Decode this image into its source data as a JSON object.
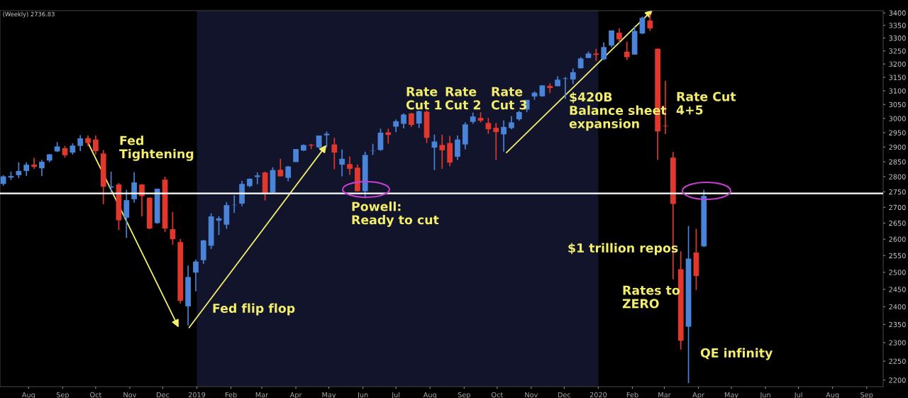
{
  "chart_data": {
    "type": "candlestick",
    "log": true,
    "x": [
      "2018-07-09",
      "2018-07-16",
      "2018-07-23",
      "2018-07-30",
      "2018-08-06",
      "2018-08-13",
      "2018-08-20",
      "2018-08-27",
      "2018-09-03",
      "2018-09-10",
      "2018-09-17",
      "2018-09-24",
      "2018-10-01",
      "2018-10-08",
      "2018-10-15",
      "2018-10-22",
      "2018-10-29",
      "2018-11-05",
      "2018-11-12",
      "2018-11-19",
      "2018-11-26",
      "2018-12-03",
      "2018-12-10",
      "2018-12-17",
      "2018-12-24",
      "2018-12-31",
      "2019-01-07",
      "2019-01-14",
      "2019-01-21",
      "2019-01-28",
      "2019-02-04",
      "2019-02-11",
      "2019-02-18",
      "2019-02-25",
      "2019-03-04",
      "2019-03-11",
      "2019-03-18",
      "2019-03-25",
      "2019-04-01",
      "2019-04-08",
      "2019-04-15",
      "2019-04-22",
      "2019-04-29",
      "2019-05-06",
      "2019-05-13",
      "2019-05-20",
      "2019-05-27",
      "2019-06-03",
      "2019-06-10",
      "2019-06-17",
      "2019-06-24",
      "2019-07-01",
      "2019-07-08",
      "2019-07-15",
      "2019-07-22",
      "2019-07-29",
      "2019-08-05",
      "2019-08-12",
      "2019-08-19",
      "2019-08-26",
      "2019-09-02",
      "2019-09-09",
      "2019-09-16",
      "2019-09-23",
      "2019-09-30",
      "2019-10-07",
      "2019-10-14",
      "2019-10-21",
      "2019-10-28",
      "2019-11-04",
      "2019-11-11",
      "2019-11-18",
      "2019-11-25",
      "2019-12-02",
      "2019-12-09",
      "2019-12-16",
      "2019-12-23",
      "2019-12-30",
      "2020-01-06",
      "2020-01-13",
      "2020-01-20",
      "2020-01-27",
      "2020-02-03",
      "2020-02-10",
      "2020-02-17",
      "2020-02-24",
      "2020-03-02",
      "2020-03-09",
      "2020-03-16",
      "2020-03-23",
      "2020-03-30",
      "2020-04-06"
    ],
    "ohlc": [
      [
        2776,
        2805,
        2770,
        2801
      ],
      [
        2797,
        2817,
        2789,
        2802
      ],
      [
        2805,
        2848,
        2795,
        2819
      ],
      [
        2819,
        2848,
        2802,
        2840
      ],
      [
        2840,
        2863,
        2826,
        2833
      ],
      [
        2828,
        2856,
        2802,
        2850
      ],
      [
        2854,
        2876,
        2848,
        2875
      ],
      [
        2885,
        2917,
        2883,
        2902
      ],
      [
        2896,
        2904,
        2864,
        2872
      ],
      [
        2881,
        2913,
        2874,
        2905
      ],
      [
        2904,
        2941,
        2886,
        2930
      ],
      [
        2931,
        2940,
        2903,
        2914
      ],
      [
        2926,
        2940,
        2874,
        2886
      ],
      [
        2878,
        2890,
        2710,
        2767
      ],
      [
        2764,
        2817,
        2749,
        2768
      ],
      [
        2774,
        2779,
        2628,
        2659
      ],
      [
        2667,
        2757,
        2604,
        2723
      ],
      [
        2726,
        2815,
        2715,
        2781
      ],
      [
        2774,
        2776,
        2671,
        2736
      ],
      [
        2731,
        2732,
        2631,
        2633
      ],
      [
        2650,
        2761,
        2648,
        2760
      ],
      [
        2790,
        2800,
        2622,
        2633
      ],
      [
        2631,
        2685,
        2583,
        2600
      ],
      [
        2591,
        2601,
        2409,
        2417
      ],
      [
        2401,
        2520,
        2347,
        2486
      ],
      [
        2499,
        2538,
        2444,
        2532
      ],
      [
        2536,
        2598,
        2525,
        2596
      ],
      [
        2580,
        2681,
        2570,
        2671
      ],
      [
        2658,
        2672,
        2613,
        2665
      ],
      [
        2645,
        2717,
        2632,
        2707
      ],
      [
        2707,
        2739,
        2682,
        2708
      ],
      [
        2712,
        2786,
        2704,
        2776
      ],
      [
        2769,
        2794,
        2765,
        2793
      ],
      [
        2799,
        2814,
        2775,
        2804
      ],
      [
        2814,
        2817,
        2722,
        2743
      ],
      [
        2748,
        2831,
        2747,
        2822
      ],
      [
        2823,
        2860,
        2801,
        2801
      ],
      [
        2796,
        2836,
        2785,
        2834
      ],
      [
        2849,
        2893,
        2849,
        2893
      ],
      [
        2888,
        2909,
        2887,
        2907
      ],
      [
        2908,
        2911,
        2893,
        2905
      ],
      [
        2899,
        2940,
        2896,
        2940
      ],
      [
        2941,
        2954,
        2900,
        2946
      ],
      [
        2909,
        2932,
        2825,
        2881
      ],
      [
        2840,
        2892,
        2801,
        2860
      ],
      [
        2842,
        2868,
        2806,
        2826
      ],
      [
        2830,
        2841,
        2751,
        2752
      ],
      [
        2752,
        2884,
        2729,
        2873
      ],
      [
        2886,
        2911,
        2873,
        2887
      ],
      [
        2890,
        2964,
        2887,
        2950
      ],
      [
        2951,
        2964,
        2912,
        2942
      ],
      [
        2971,
        2996,
        2952,
        2990
      ],
      [
        2981,
        3018,
        2965,
        3014
      ],
      [
        3018,
        3020,
        2970,
        2977
      ],
      [
        2982,
        3028,
        2966,
        3026
      ],
      [
        3024,
        3029,
        2914,
        2932
      ],
      [
        2898,
        2943,
        2822,
        2919
      ],
      [
        2907,
        2943,
        2826,
        2889
      ],
      [
        2914,
        2939,
        2835,
        2847
      ],
      [
        2867,
        2940,
        2856,
        2926
      ],
      [
        2909,
        2986,
        2892,
        2979
      ],
      [
        2988,
        3021,
        2981,
        3007
      ],
      [
        3002,
        3022,
        2986,
        2992
      ],
      [
        2984,
        3002,
        2946,
        2962
      ],
      [
        2967,
        2984,
        2856,
        2952
      ],
      [
        2944,
        2993,
        2884,
        2970
      ],
      [
        2966,
        3008,
        2962,
        2986
      ],
      [
        2997,
        3027,
        2992,
        3023
      ],
      [
        3032,
        3067,
        3023,
        3067
      ],
      [
        3079,
        3098,
        3067,
        3093
      ],
      [
        3080,
        3121,
        3078,
        3120
      ],
      [
        3118,
        3128,
        3091,
        3110
      ],
      [
        3117,
        3154,
        3117,
        3141
      ],
      [
        3144,
        3151,
        3070,
        3146
      ],
      [
        3142,
        3183,
        3125,
        3169
      ],
      [
        3184,
        3226,
        3183,
        3221
      ],
      [
        3223,
        3248,
        3223,
        3240
      ],
      [
        3240,
        3258,
        3212,
        3235
      ],
      [
        3218,
        3283,
        3215,
        3265
      ],
      [
        3271,
        3330,
        3264,
        3330
      ],
      [
        3321,
        3338,
        3282,
        3295
      ],
      [
        3247,
        3286,
        3215,
        3226
      ],
      [
        3236,
        3348,
        3236,
        3328
      ],
      [
        3318,
        3385,
        3315,
        3380
      ],
      [
        3369,
        3394,
        3328,
        3338
      ],
      [
        3258,
        3260,
        2856,
        2954
      ],
      [
        2974,
        3137,
        2945,
        2972
      ],
      [
        2864,
        2883,
        2479,
        2711
      ],
      [
        2509,
        2563,
        2281,
        2305
      ],
      [
        2344,
        2641,
        2192,
        2541
      ],
      [
        2559,
        2632,
        2448,
        2489
      ],
      [
        2578,
        2757,
        2576,
        2737
      ]
    ],
    "colors": [
      "#4a84d8",
      "#4a84d8",
      "#4a84d8",
      "#4a84d8",
      "#e2372c",
      "#4a84d8",
      "#4a84d8",
      "#4a84d8",
      "#e2372c",
      "#4a84d8",
      "#4a84d8",
      "#e2372c",
      "#e2372c",
      "#e2372c",
      "#4a84d8",
      "#e2372c",
      "#4a84d8",
      "#4a84d8",
      "#e2372c",
      "#e2372c",
      "#4a84d8",
      "#e2372c",
      "#e2372c",
      "#e2372c",
      "#4a84d8",
      "#4a84d8",
      "#4a84d8",
      "#4a84d8",
      "#4a84d8",
      "#4a84d8",
      "#4a84d8",
      "#4a84d8",
      "#4a84d8",
      "#4a84d8",
      "#e2372c",
      "#4a84d8",
      "#e2372c",
      "#4a84d8",
      "#4a84d8",
      "#4a84d8",
      "#e2372c",
      "#4a84d8",
      "#4a84d8",
      "#e2372c",
      "#4a84d8",
      "#e2372c",
      "#e2372c",
      "#4a84d8",
      "#4a84d8",
      "#4a84d8",
      "#e2372c",
      "#4a84d8",
      "#4a84d8",
      "#e2372c",
      "#4a84d8",
      "#e2372c",
      "#4a84d8",
      "#e2372c",
      "#e2372c",
      "#4a84d8",
      "#4a84d8",
      "#4a84d8",
      "#e2372c",
      "#e2372c",
      "#e2372c",
      "#4a84d8",
      "#4a84d8",
      "#4a84d8",
      "#4a84d8",
      "#4a84d8",
      "#4a84d8",
      "#e2372c",
      "#4a84d8",
      "#4a84d8",
      "#4a84d8",
      "#4a84d8",
      "#4a84d8",
      "#e2372c",
      "#4a84d8",
      "#4a84d8",
      "#e2372c",
      "#e2372c",
      "#4a84d8",
      "#4a84d8",
      "#e2372c",
      "#e2372c",
      "#e2372c",
      "#e2372c",
      "#e2372c",
      "#4a84d8",
      "#e2372c",
      "#4a84d8"
    ],
    "xlim": [
      "2018-07-06",
      "2020-09-16"
    ],
    "xticks": [
      {
        "value": "2018-08-01",
        "label": "Aug"
      },
      {
        "value": "2018-09-01",
        "label": "Sep"
      },
      {
        "value": "2018-10-01",
        "label": "Oct"
      },
      {
        "value": "2018-11-01",
        "label": "Nov"
      },
      {
        "value": "2018-12-01",
        "label": "Dec"
      },
      {
        "value": "2019-01-01",
        "label": "2019"
      },
      {
        "value": "2019-02-01",
        "label": "Feb"
      },
      {
        "value": "2019-03-01",
        "label": "Mar"
      },
      {
        "value": "2019-04-01",
        "label": "Apr"
      },
      {
        "value": "2019-05-01",
        "label": "May"
      },
      {
        "value": "2019-06-01",
        "label": "Jun"
      },
      {
        "value": "2019-07-01",
        "label": "Jul"
      },
      {
        "value": "2019-08-01",
        "label": "Aug"
      },
      {
        "value": "2019-09-01",
        "label": "Sep"
      },
      {
        "value": "2019-10-01",
        "label": "Oct"
      },
      {
        "value": "2019-11-01",
        "label": "Nov"
      },
      {
        "value": "2019-12-01",
        "label": "Dec"
      },
      {
        "value": "2020-01-01",
        "label": "2020"
      },
      {
        "value": "2020-02-01",
        "label": "Feb"
      },
      {
        "value": "2020-03-01",
        "label": "Mar"
      },
      {
        "value": "2020-04-01",
        "label": "Apr"
      },
      {
        "value": "2020-05-01",
        "label": "May"
      },
      {
        "value": "2020-06-01",
        "label": "Jun"
      },
      {
        "value": "2020-07-01",
        "label": "Jul"
      },
      {
        "value": "2020-08-01",
        "label": "Aug"
      },
      {
        "value": "2020-09-01",
        "label": "Sep"
      }
    ],
    "ylim": [
      2183,
      3409
    ],
    "yticks": [
      2200,
      2250,
      2300,
      2350,
      2400,
      2450,
      2500,
      2550,
      2600,
      2650,
      2700,
      2750,
      2800,
      2850,
      2900,
      2950,
      3000,
      3050,
      3100,
      3150,
      3200,
      3250,
      3300,
      3350,
      3400
    ],
    "ref_lines": [
      {
        "axis": "y",
        "value": 2745,
        "color": "#ffffff"
      }
    ],
    "bands": [
      {
        "axis": "x",
        "from": "2019-01-01",
        "to": "2020-01-01",
        "color": "#11142b"
      }
    ],
    "grid": false,
    "annotations": [
      "(Weekly) 2736.83",
      "Fed\nTightening",
      "Fed flip flop",
      "Powell:\nReady to cut",
      "Rate\nCut 1",
      "Rate\nCut 2",
      "Rate\nCut 3",
      "$420B\nBalance sheet\nexpansion",
      "Rate Cut\n4+5",
      "$1 trillion repos",
      "Rates to\nZERO",
      "QE infinity"
    ]
  }
}
